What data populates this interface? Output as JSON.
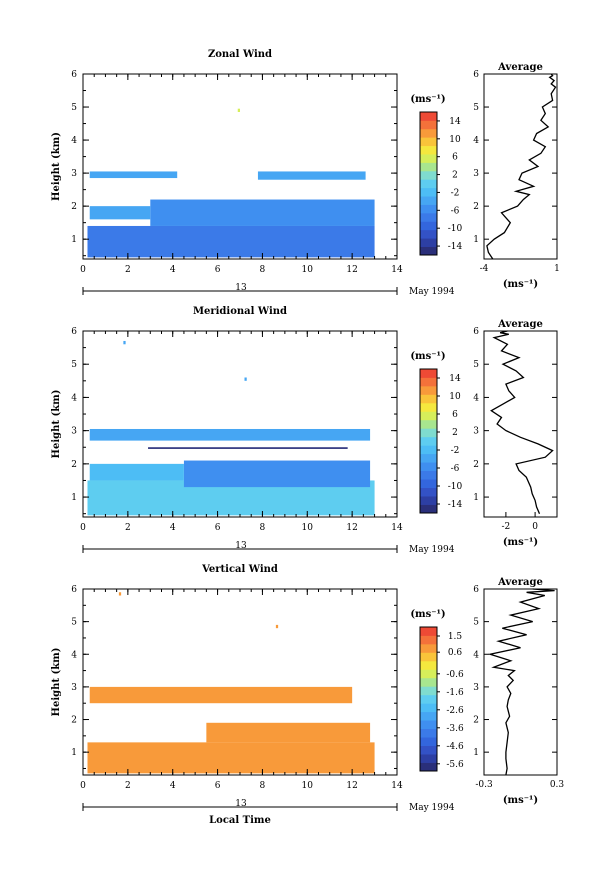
{
  "chart_data": [
    {
      "type": "heatmap",
      "title": "Zonal Wind",
      "xlabel": "",
      "ylabel": "Height (km)",
      "xlim": [
        0,
        14
      ],
      "ylim": [
        0.4,
        6
      ],
      "x_ticks": [
        0,
        2,
        4,
        6,
        8,
        10,
        12,
        14
      ],
      "y_ticks": [
        1,
        2,
        3,
        4,
        5,
        6
      ],
      "date_row": {
        "label": "13",
        "suffix": "May 1994"
      },
      "colorbar": {
        "unit": "(ms⁻¹)",
        "min": -16,
        "max": 16,
        "ticks": [
          14,
          10,
          6,
          2,
          -2,
          -6,
          -10,
          -14
        ],
        "colors": [
          "#2a2f7a",
          "#2d3fa4",
          "#3352c6",
          "#3366dd",
          "#3b7ae8",
          "#3f8ff0",
          "#46a6f3",
          "#4dbdf5",
          "#5ecdf0",
          "#7fdccf",
          "#a8e68f",
          "#d6ee5a",
          "#f5e83e",
          "#f9c43a",
          "#f89a3a",
          "#f4713a",
          "#ee4a35"
        ]
      },
      "regions": [
        {
          "x0": 0.2,
          "x1": 13.0,
          "y0": 0.45,
          "y1": 1.4,
          "value": -8
        },
        {
          "x0": 3.0,
          "x1": 13.0,
          "y0": 1.4,
          "y1": 2.2,
          "value": -5
        },
        {
          "x0": 0.3,
          "x1": 3.0,
          "y0": 1.6,
          "y1": 2.0,
          "value": -3
        },
        {
          "x0": 0.3,
          "x1": 4.2,
          "y0": 2.85,
          "y1": 3.05,
          "value": -3
        },
        {
          "x0": 7.8,
          "x1": 12.6,
          "y0": 2.8,
          "y1": 3.05,
          "value": -3
        },
        {
          "x0": 6.9,
          "x1": 7.0,
          "y0": 4.85,
          "y1": 4.95,
          "value": 6
        }
      ]
    },
    {
      "type": "heatmap",
      "title": "Meridional Wind",
      "xlabel": "",
      "ylabel": "Height (km)",
      "xlim": [
        0,
        14
      ],
      "ylim": [
        0.4,
        6
      ],
      "x_ticks": [
        0,
        2,
        4,
        6,
        8,
        10,
        12,
        14
      ],
      "y_ticks": [
        1,
        2,
        3,
        4,
        5,
        6
      ],
      "date_row": {
        "label": "13",
        "suffix": "May 1994"
      },
      "colorbar": {
        "unit": "(ms⁻¹)",
        "min": -16,
        "max": 16,
        "ticks": [
          14,
          10,
          6,
          2,
          -2,
          -6,
          -10,
          -14
        ],
        "colors": [
          "#2a2f7a",
          "#2d3fa4",
          "#3352c6",
          "#3366dd",
          "#3b7ae8",
          "#3f8ff0",
          "#46a6f3",
          "#4dbdf5",
          "#5ecdf0",
          "#7fdccf",
          "#a8e68f",
          "#d6ee5a",
          "#f5e83e",
          "#f9c43a",
          "#f89a3a",
          "#f4713a",
          "#ee4a35"
        ]
      },
      "regions": [
        {
          "x0": 0.2,
          "x1": 13.0,
          "y0": 0.45,
          "y1": 1.5,
          "value": 0
        },
        {
          "x0": 4.5,
          "x1": 12.8,
          "y0": 1.3,
          "y1": 2.1,
          "value": -5
        },
        {
          "x0": 0.3,
          "x1": 4.5,
          "y0": 1.5,
          "y1": 2.0,
          "value": -2
        },
        {
          "x0": 0.3,
          "x1": 12.8,
          "y0": 2.7,
          "y1": 3.05,
          "value": -3
        },
        {
          "x0": 2.9,
          "x1": 11.8,
          "y0": 2.45,
          "y1": 2.5,
          "value": -16
        },
        {
          "x0": 1.8,
          "x1": 1.9,
          "y0": 5.6,
          "y1": 5.7,
          "value": -3
        },
        {
          "x0": 7.2,
          "x1": 7.3,
          "y0": 4.5,
          "y1": 4.6,
          "value": -3
        }
      ]
    },
    {
      "type": "heatmap",
      "title": "Vertical Wind",
      "xlabel": "Local Time",
      "ylabel": "Height (km)",
      "xlim": [
        0,
        14
      ],
      "ylim": [
        0.3,
        6
      ],
      "x_ticks": [
        0,
        2,
        4,
        6,
        8,
        10,
        12,
        14
      ],
      "y_ticks": [
        1,
        2,
        3,
        4,
        5,
        6
      ],
      "date_row": {
        "label": "13",
        "suffix": "May 1994"
      },
      "colorbar": {
        "unit": "(ms⁻¹)",
        "min": -6.0,
        "max": 2.0,
        "ticks": [
          1.5,
          0.6,
          -0.6,
          -1.6,
          -2.6,
          -3.6,
          -4.6,
          -5.6
        ],
        "colors": [
          "#2a2f7a",
          "#2d3fa4",
          "#3352c6",
          "#3366dd",
          "#3b7ae8",
          "#3f8ff0",
          "#46a6f3",
          "#4dbdf5",
          "#5ecdf0",
          "#7fdccf",
          "#a8e68f",
          "#d6ee5a",
          "#f5e83e",
          "#f9c43a",
          "#f89a3a",
          "#f4713a",
          "#ee4a35"
        ]
      },
      "regions": [
        {
          "x0": 0.2,
          "x1": 13.0,
          "y0": 0.35,
          "y1": 1.3,
          "value": 0.8
        },
        {
          "x0": 5.5,
          "x1": 12.8,
          "y0": 1.3,
          "y1": 1.9,
          "value": 0.8
        },
        {
          "x0": 0.3,
          "x1": 12.0,
          "y0": 2.5,
          "y1": 3.0,
          "value": 0.6
        },
        {
          "x0": 1.6,
          "x1": 1.7,
          "y0": 5.8,
          "y1": 5.9,
          "value": 0.6
        },
        {
          "x0": 8.6,
          "x1": 8.7,
          "y0": 4.8,
          "y1": 4.9,
          "value": 0.6
        }
      ]
    }
  ],
  "profiles": [
    {
      "title": "Average",
      "xlabel": "(ms⁻¹)",
      "xlim": [
        -4,
        1
      ],
      "x_ticks": [
        -4,
        1
      ],
      "ylim": [
        0.4,
        6
      ],
      "y_ticks": [
        1,
        2,
        3,
        4,
        5,
        6
      ],
      "x": [
        -3.4,
        -3.7,
        -3.8,
        -3.3,
        -2.6,
        -2.2,
        -2.8,
        -1.7,
        -1.3,
        -0.9,
        -1.8,
        -0.6,
        -1.6,
        -1.4,
        -0.3,
        -0.9,
        -0.1,
        0.2,
        -0.6,
        -0.4,
        0.4,
        -0.1,
        0.2,
        0.0,
        0.7,
        0.6,
        0.9,
        0.6,
        0.8,
        0.5,
        0.7,
        0.6
      ],
      "y": [
        0.4,
        0.6,
        0.8,
        1.0,
        1.2,
        1.5,
        1.8,
        2.0,
        2.2,
        2.35,
        2.45,
        2.6,
        2.8,
        3.0,
        3.2,
        3.4,
        3.6,
        3.8,
        4.0,
        4.2,
        4.4,
        4.6,
        4.8,
        5.0,
        5.2,
        5.4,
        5.6,
        5.7,
        5.8,
        5.9,
        5.95,
        6.0
      ]
    },
    {
      "title": "Average",
      "xlabel": "(ms⁻¹)",
      "xlim": [
        -3.5,
        1.5
      ],
      "x_ticks": [
        -2,
        0
      ],
      "ylim": [
        0.4,
        6
      ],
      "y_ticks": [
        1,
        2,
        3,
        4,
        5,
        6
      ],
      "x": [
        0.3,
        0.1,
        0.0,
        -0.2,
        -0.3,
        -0.6,
        -1.1,
        -1.3,
        0.7,
        1.2,
        0.2,
        -1.0,
        -2.0,
        -2.6,
        -2.3,
        -3.0,
        -2.2,
        -1.4,
        -1.8,
        -2.0,
        -0.8,
        -1.3,
        -2.2,
        -1.1,
        -2.3,
        -1.9,
        -2.8,
        -1.8,
        -2.4,
        -1.9
      ],
      "y": [
        0.5,
        0.7,
        0.9,
        1.1,
        1.3,
        1.6,
        1.8,
        2.0,
        2.2,
        2.4,
        2.6,
        2.8,
        3.0,
        3.2,
        3.4,
        3.6,
        3.8,
        4.0,
        4.2,
        4.4,
        4.6,
        4.8,
        5.0,
        5.2,
        5.4,
        5.6,
        5.8,
        5.9,
        5.95,
        6.0
      ]
    },
    {
      "title": "Average",
      "xlabel": "(ms⁻¹)",
      "xlim": [
        -0.3,
        0.3
      ],
      "x_ticks": [
        -0.3,
        0.3
      ],
      "ylim": [
        0.3,
        6
      ],
      "y_ticks": [
        1,
        2,
        3,
        4,
        5,
        6
      ],
      "x": [
        -0.12,
        -0.11,
        -0.12,
        -0.12,
        -0.11,
        -0.1,
        -0.12,
        -0.09,
        -0.11,
        -0.1,
        -0.08,
        -0.11,
        -0.06,
        -0.1,
        -0.05,
        -0.22,
        -0.08,
        -0.25,
        0.0,
        -0.18,
        0.05,
        -0.15,
        0.1,
        -0.08,
        0.15,
        0.0,
        0.2,
        0.05,
        0.28,
        0.1,
        0.25,
        0.18
      ],
      "y": [
        0.3,
        0.5,
        0.8,
        1.0,
        1.3,
        1.6,
        1.9,
        2.1,
        2.4,
        2.6,
        2.8,
        3.0,
        3.2,
        3.35,
        3.5,
        3.6,
        3.8,
        4.0,
        4.2,
        4.4,
        4.6,
        4.8,
        5.0,
        5.2,
        5.4,
        5.6,
        5.8,
        5.9,
        5.95,
        6.0,
        6.05,
        6.1
      ]
    }
  ]
}
